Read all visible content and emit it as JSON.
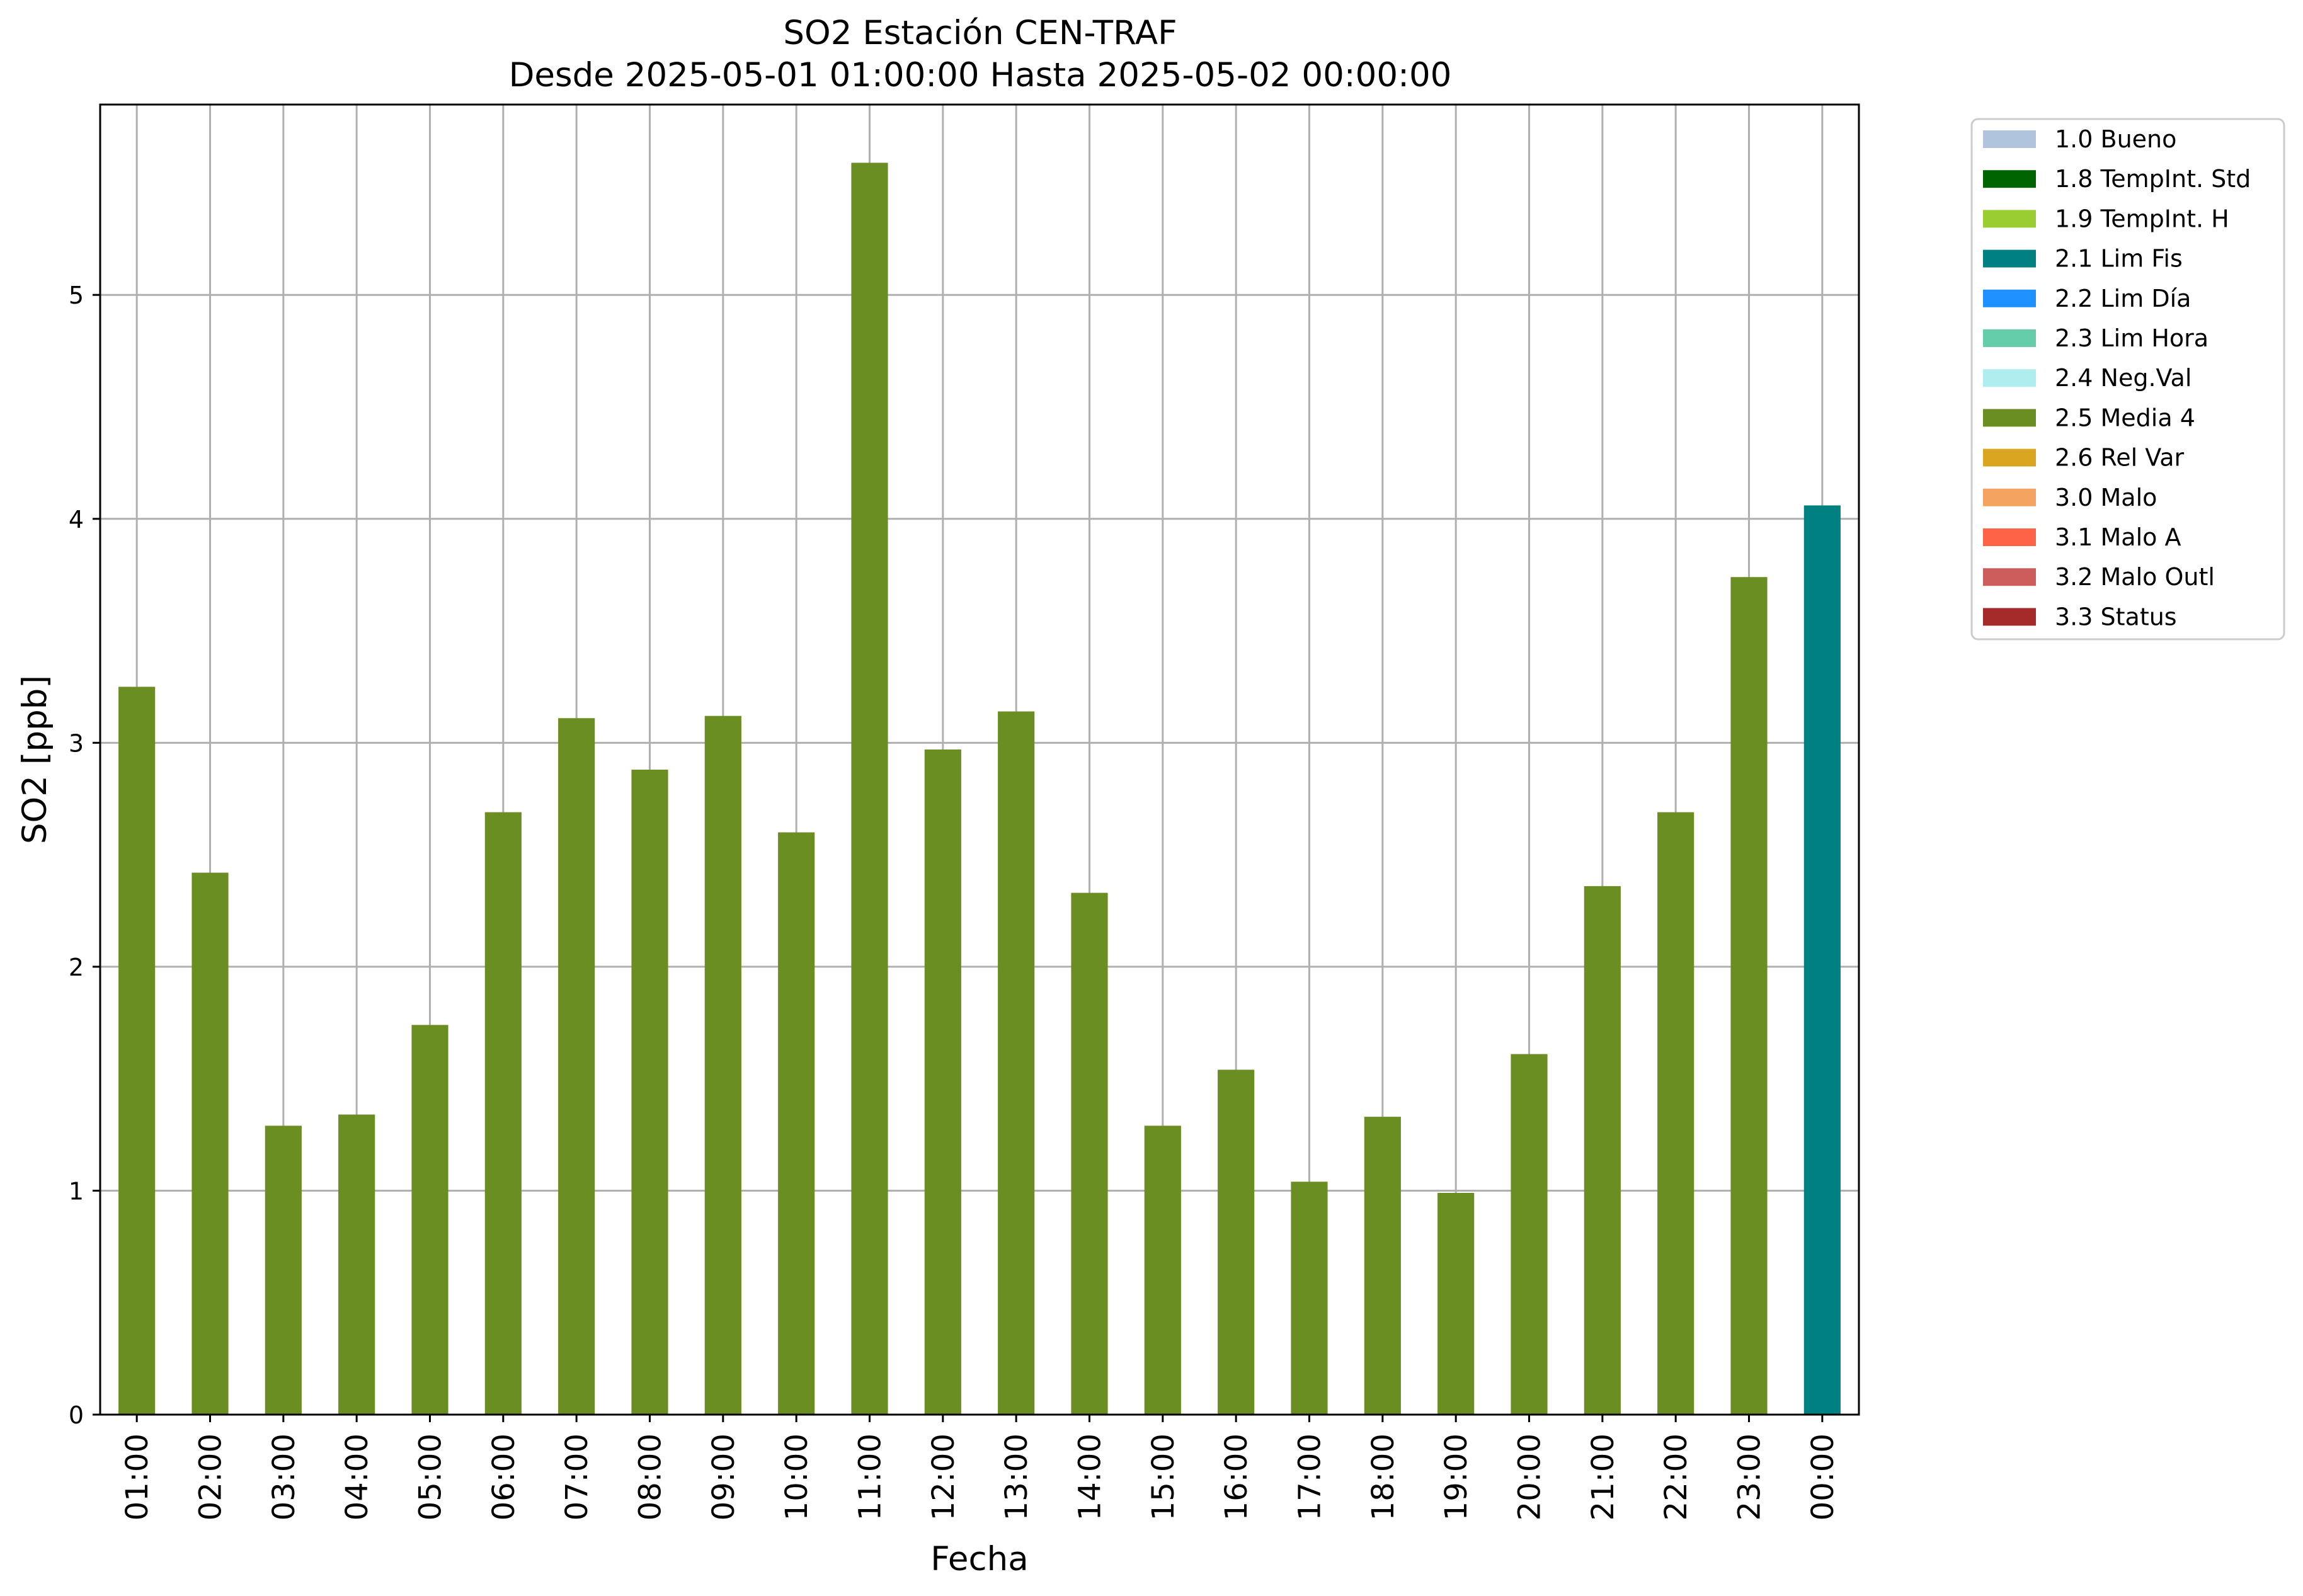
{
  "chart_data": {
    "type": "bar",
    "title": "SO2 Estación CEN-TRAF",
    "subtitle": "Desde 2025-05-01 01:00:00 Hasta 2025-05-02 00:00:00",
    "xlabel": "Fecha",
    "ylabel": "SO2 [ppb]",
    "ylim": [
      0,
      5.85
    ],
    "yticks": [
      0,
      1,
      2,
      3,
      4,
      5
    ],
    "grid": true,
    "legend_position": "outside-right-top",
    "categories": [
      "01:00",
      "02:00",
      "03:00",
      "04:00",
      "05:00",
      "06:00",
      "07:00",
      "08:00",
      "09:00",
      "10:00",
      "11:00",
      "12:00",
      "13:00",
      "14:00",
      "15:00",
      "16:00",
      "17:00",
      "18:00",
      "19:00",
      "20:00",
      "21:00",
      "22:00",
      "23:00",
      "00:00"
    ],
    "values": [
      3.25,
      2.42,
      1.29,
      1.34,
      1.74,
      2.69,
      3.11,
      2.88,
      3.12,
      2.6,
      5.59,
      2.97,
      3.14,
      2.33,
      1.29,
      1.54,
      1.04,
      1.33,
      0.99,
      1.61,
      2.36,
      2.69,
      3.74,
      4.06
    ],
    "flags": [
      "2.5 Media 4",
      "2.5 Media 4",
      "2.5 Media 4",
      "2.5 Media 4",
      "2.5 Media 4",
      "2.5 Media 4",
      "2.5 Media 4",
      "2.5 Media 4",
      "2.5 Media 4",
      "2.5 Media 4",
      "2.5 Media 4",
      "2.5 Media 4",
      "2.5 Media 4",
      "2.5 Media 4",
      "2.5 Media 4",
      "2.5 Media 4",
      "2.5 Media 4",
      "2.5 Media 4",
      "2.5 Media 4",
      "2.5 Media 4",
      "2.5 Media 4",
      "2.5 Media 4",
      "2.5 Media 4",
      "2.1 Lim Fis"
    ],
    "legend": [
      {
        "label": "1.0 Bueno",
        "color": "#b0c4de"
      },
      {
        "label": "1.8 TempInt. Std",
        "color": "#006400"
      },
      {
        "label": "1.9 TempInt. H",
        "color": "#9acd32"
      },
      {
        "label": "2.1 Lim Fis",
        "color": "#008080"
      },
      {
        "label": "2.2 Lim Día",
        "color": "#1e90ff"
      },
      {
        "label": "2.3 Lim Hora",
        "color": "#66cdaa"
      },
      {
        "label": "2.4 Neg.Val",
        "color": "#afeeee"
      },
      {
        "label": "2.5 Media 4",
        "color": "#6b8e23"
      },
      {
        "label": "2.6 Rel Var",
        "color": "#daa520"
      },
      {
        "label": "3.0 Malo",
        "color": "#f4a460"
      },
      {
        "label": "3.1 Malo A",
        "color": "#ff6347"
      },
      {
        "label": "3.2 Malo Outl",
        "color": "#cd5c5c"
      },
      {
        "label": "3.3 Status",
        "color": "#a52a2a"
      }
    ]
  }
}
